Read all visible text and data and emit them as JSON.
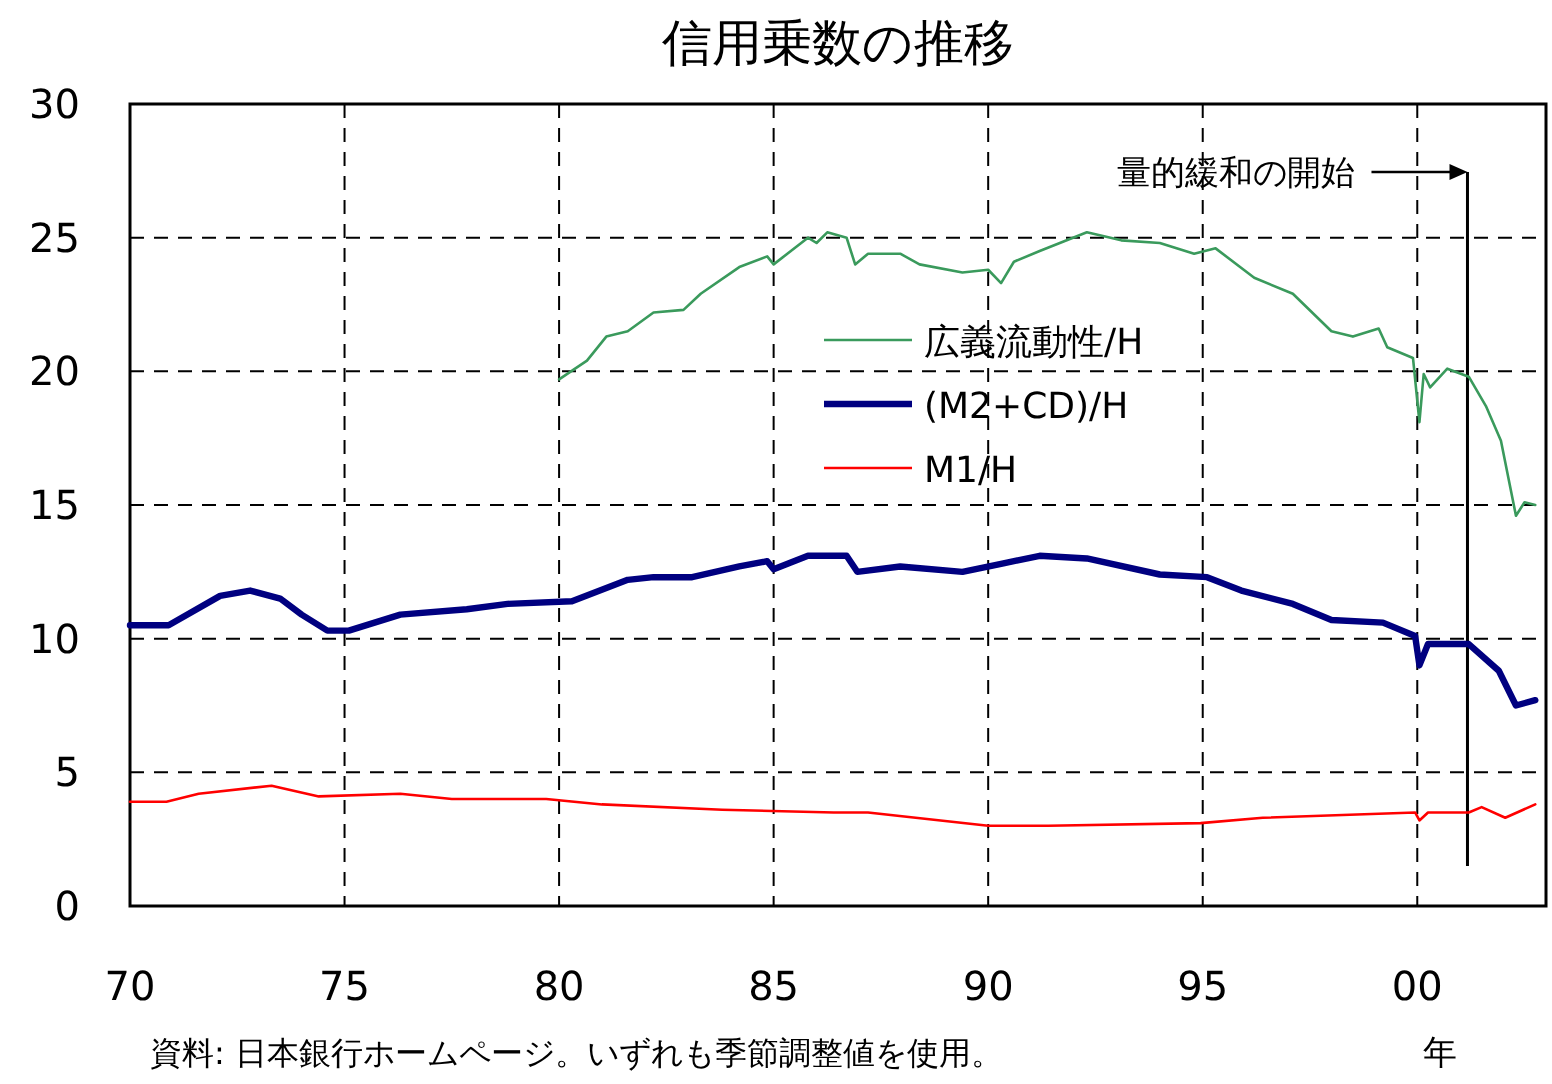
{
  "chart_data": {
    "type": "line",
    "title": "信用乗数の推移",
    "xlabel": "年",
    "annotations": [
      "資料: 日本銀行ホームページ。いずれも季節調整値を使用。"
    ],
    "xlim": [
      1970,
      2003
    ],
    "ylim": [
      0,
      30
    ],
    "xticks": [
      {
        "value": 1970,
        "label": "70"
      },
      {
        "value": 1975,
        "label": "75"
      },
      {
        "value": 1980,
        "label": "80"
      },
      {
        "value": 1985,
        "label": "85"
      },
      {
        "value": 1990,
        "label": "90"
      },
      {
        "value": 1995,
        "label": "95"
      },
      {
        "value": 2000,
        "label": "00"
      }
    ],
    "yticks": [
      0,
      5,
      10,
      15,
      20,
      25,
      30
    ],
    "grid": true,
    "legend": "top right",
    "marker": "none",
    "line_style": "solid",
    "ref_lines": [
      {
        "axis": "x",
        "value": 2001.17,
        "label": "量的緩和の開始",
        "color": "#000000"
      }
    ],
    "series": [
      {
        "name": "広義流動性/H",
        "color": "#3a9a5c",
        "x": [
          1980.0,
          1980.65,
          1981.1,
          1981.6,
          1982.2,
          1982.9,
          1983.3,
          1984.2,
          1984.85,
          1985.0,
          1985.8,
          1986.0,
          1986.25,
          1986.7,
          1986.9,
          1987.2,
          1987.95,
          1988.4,
          1989.4,
          1990.0,
          1990.3,
          1990.6,
          1991.2,
          1992.3,
          1993.1,
          1994.0,
          1994.8,
          1995.3,
          1996.2,
          1997.1,
          1998.0,
          1998.5,
          1999.1,
          1999.3,
          1999.9,
          2000.05,
          2000.15,
          2000.3,
          2000.7,
          2001.2,
          2001.6,
          2001.95,
          2002.3,
          2002.5,
          2002.75
        ],
        "values": [
          19.7,
          20.4,
          21.3,
          21.5,
          22.2,
          22.3,
          22.9,
          23.9,
          24.3,
          24.0,
          25.0,
          24.8,
          25.2,
          25.0,
          24.0,
          24.4,
          24.4,
          24.0,
          23.7,
          23.8,
          23.3,
          24.1,
          24.5,
          25.2,
          24.9,
          24.8,
          24.4,
          24.6,
          23.5,
          22.9,
          21.5,
          21.3,
          21.6,
          20.9,
          20.5,
          18.1,
          19.9,
          19.4,
          20.1,
          19.8,
          18.7,
          17.4,
          14.6,
          15.1,
          15.0
        ]
      },
      {
        "name": "(M2+CD)/H",
        "color": "#000080",
        "x": [
          1970.0,
          1970.9,
          1972.1,
          1972.8,
          1973.5,
          1974.0,
          1974.6,
          1975.1,
          1976.3,
          1977.85,
          1978.8,
          1980.3,
          1981.6,
          1982.2,
          1983.1,
          1984.2,
          1984.85,
          1985.0,
          1985.8,
          1986.25,
          1986.7,
          1986.95,
          1987.95,
          1989.4,
          1990.3,
          1991.2,
          1992.3,
          1994.0,
          1995.1,
          1995.9,
          1997.1,
          1998.0,
          1999.2,
          1999.95,
          2000.05,
          2000.25,
          2001.2,
          2001.9,
          2002.3,
          2002.75
        ],
        "values": [
          10.5,
          10.5,
          11.6,
          11.8,
          11.5,
          10.9,
          10.3,
          10.3,
          10.9,
          11.1,
          11.3,
          11.4,
          12.2,
          12.3,
          12.3,
          12.7,
          12.9,
          12.6,
          13.1,
          13.1,
          13.1,
          12.5,
          12.7,
          12.5,
          12.8,
          13.1,
          13.0,
          12.4,
          12.3,
          11.8,
          11.3,
          10.7,
          10.6,
          10.1,
          9.0,
          9.8,
          9.8,
          8.8,
          7.5,
          7.7
        ]
      },
      {
        "name": "M1/H",
        "color": "#ff0000",
        "x": [
          1970.0,
          1970.85,
          1971.6,
          1973.3,
          1974.4,
          1976.3,
          1977.5,
          1979.7,
          1981.0,
          1983.8,
          1986.4,
          1987.2,
          1990.0,
          1991.4,
          1994.95,
          1996.4,
          1999.95,
          2000.05,
          2000.25,
          2001.2,
          2001.5,
          2002.05,
          2002.75
        ],
        "values": [
          3.9,
          3.9,
          4.2,
          4.5,
          4.1,
          4.2,
          4.0,
          4.0,
          3.8,
          3.6,
          3.5,
          3.5,
          3.0,
          3.0,
          3.1,
          3.3,
          3.5,
          3.2,
          3.5,
          3.5,
          3.7,
          3.3,
          3.8
        ]
      }
    ]
  }
}
